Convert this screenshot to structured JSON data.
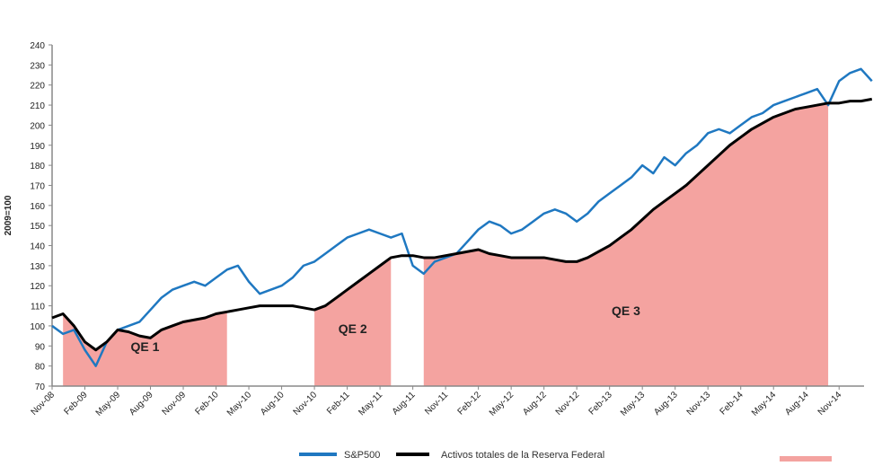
{
  "chart_data": {
    "type": "line",
    "title": "",
    "ylabel": "2009=100",
    "ylim": [
      70,
      240
    ],
    "yticks": [
      70,
      80,
      90,
      100,
      110,
      120,
      130,
      140,
      150,
      160,
      170,
      180,
      190,
      200,
      210,
      220,
      230,
      240
    ],
    "x_months": [
      "Nov-08",
      "Dec-08",
      "Jan-09",
      "Feb-09",
      "Mar-09",
      "Apr-09",
      "May-09",
      "Jun-09",
      "Jul-09",
      "Aug-09",
      "Sep-09",
      "Oct-09",
      "Nov-09",
      "Dec-09",
      "Jan-10",
      "Feb-10",
      "Mar-10",
      "Apr-10",
      "May-10",
      "Jun-10",
      "Jul-10",
      "Aug-10",
      "Sep-10",
      "Oct-10",
      "Nov-10",
      "Dec-10",
      "Jan-11",
      "Feb-11",
      "Mar-11",
      "Apr-11",
      "May-11",
      "Jun-11",
      "Jul-11",
      "Aug-11",
      "Sep-11",
      "Oct-11",
      "Nov-11",
      "Dec-11",
      "Jan-12",
      "Feb-12",
      "Mar-12",
      "Apr-12",
      "May-12",
      "Jun-12",
      "Jul-12",
      "Aug-12",
      "Sep-12",
      "Oct-12",
      "Nov-12",
      "Dec-12",
      "Jan-13",
      "Feb-13",
      "Mar-13",
      "Apr-13",
      "May-13",
      "Jun-13",
      "Jul-13",
      "Aug-13",
      "Sep-13",
      "Oct-13",
      "Nov-13",
      "Dec-13",
      "Jan-14",
      "Feb-14",
      "Mar-14",
      "Apr-14",
      "May-14",
      "Jun-14",
      "Jul-14",
      "Aug-14",
      "Sep-14",
      "Oct-14",
      "Nov-14",
      "Dec-14",
      "Jan-15",
      "Feb-15"
    ],
    "xtick_labels": [
      "Nov-08",
      "Feb-09",
      "May-09",
      "Aug-09",
      "Nov-09",
      "Feb-10",
      "May-10",
      "Aug-10",
      "Nov-10",
      "Feb-11",
      "May-11",
      "Aug-11",
      "Nov-11",
      "Feb-12",
      "May-12",
      "Aug-12",
      "Nov-12",
      "Feb-13",
      "May-13",
      "Aug-13",
      "Nov-13",
      "Feb-14",
      "May-14",
      "Aug-14",
      "Nov-14"
    ],
    "series": [
      {
        "name": "S&P500",
        "color": "#1f78c1",
        "values": [
          100,
          96,
          98,
          88,
          80,
          92,
          98,
          100,
          102,
          108,
          114,
          118,
          120,
          122,
          120,
          124,
          128,
          130,
          122,
          116,
          118,
          120,
          124,
          130,
          132,
          136,
          140,
          144,
          146,
          148,
          146,
          144,
          146,
          130,
          126,
          132,
          134,
          136,
          142,
          148,
          152,
          150,
          146,
          148,
          152,
          156,
          158,
          156,
          152,
          156,
          162,
          166,
          170,
          174,
          180,
          176,
          184,
          180,
          186,
          190,
          196,
          198,
          196,
          200,
          204,
          206,
          210,
          212,
          214,
          216,
          218,
          210,
          222,
          226,
          228,
          222
        ]
      },
      {
        "name": "Activos totales de la Reserva Federal",
        "color": "#000000",
        "values": [
          104,
          106,
          100,
          92,
          88,
          92,
          98,
          97,
          95,
          94,
          98,
          100,
          102,
          103,
          104,
          106,
          107,
          108,
          109,
          110,
          110,
          110,
          110,
          109,
          108,
          110,
          114,
          118,
          122,
          126,
          130,
          134,
          135,
          135,
          134,
          134,
          135,
          136,
          137,
          138,
          136,
          135,
          134,
          134,
          134,
          134,
          133,
          132,
          132,
          134,
          137,
          140,
          144,
          148,
          153,
          158,
          162,
          166,
          170,
          175,
          180,
          185,
          190,
          194,
          198,
          201,
          204,
          206,
          208,
          209,
          210,
          211,
          211,
          212,
          212,
          213
        ]
      }
    ],
    "shaded_periods": [
      {
        "label": "QE 1",
        "start": "Dec-08",
        "end": "Mar-10",
        "color": "#f4a3a0"
      },
      {
        "label": "QE 2",
        "start": "Nov-10",
        "end": "Jun-11",
        "color": "#f4a3a0"
      },
      {
        "label": "QE 3",
        "start": "Sep-11",
        "end": "Oct-14",
        "color": "#f4a3a0"
      }
    ],
    "legend": {
      "placement": "bottom",
      "entries": [
        "S&P500",
        "Activos totales de la Reserva Federal"
      ]
    }
  }
}
